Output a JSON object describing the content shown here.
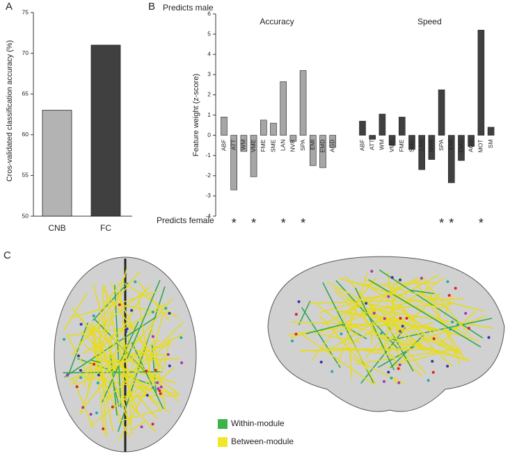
{
  "chart_data": [
    {
      "type": "bar",
      "panel_label": "A",
      "y_label": "Cros-validated classification accuracy (%)",
      "categories": [
        "CNB",
        "FC"
      ],
      "values": [
        63,
        71
      ],
      "colors": [
        "#b3b3b3",
        "#404040"
      ],
      "ylim": [
        50,
        75
      ],
      "yticks": [
        50,
        55,
        60,
        65,
        70,
        75
      ]
    },
    {
      "type": "bar",
      "panel_label": "B",
      "y_label": "Feature weight (z-score)",
      "top_note": "Predicts male",
      "bottom_note": "Predicts female",
      "ylim": [
        -4,
        6
      ],
      "yticks": [
        -4,
        -3,
        -2,
        -1,
        0,
        1,
        2,
        3,
        4,
        5,
        6
      ],
      "groups": [
        {
          "name": "Accuracy",
          "color": "#a6a6a6",
          "categories": [
            "ABF",
            "ATT",
            "WM",
            "VME",
            "FME",
            "SME",
            "LAN",
            "NVR",
            "SPA",
            "EMI",
            "EMD",
            "AGD"
          ],
          "values": [
            0.9,
            -2.7,
            -0.8,
            -2.05,
            0.75,
            0.6,
            2.65,
            -0.3,
            3.2,
            -1.5,
            -1.6,
            -0.6
          ],
          "star_labels": [
            null,
            "*",
            null,
            "*",
            null,
            null,
            "*",
            null,
            "*",
            null,
            null,
            null
          ]
        },
        {
          "name": "Speed",
          "color": "#404040",
          "categories": [
            "ABF",
            "ATT",
            "WM",
            "VME",
            "FME",
            "SME",
            "LAN",
            "NVR",
            "SPA",
            "EMI",
            "EMD",
            "AGD",
            "MOT",
            "SM"
          ],
          "values": [
            0.7,
            -0.2,
            1.05,
            -0.5,
            0.9,
            -0.7,
            -1.7,
            -1.2,
            2.25,
            -2.35,
            -1.25,
            -0.55,
            5.2,
            0.4
          ],
          "star_labels": [
            null,
            null,
            null,
            null,
            null,
            null,
            null,
            null,
            "*",
            "*",
            null,
            null,
            "*",
            null
          ]
        }
      ]
    }
  ],
  "figure_c": {
    "panel_label": "C",
    "legend": [
      {
        "label": "Within-module",
        "color": "#3cb44b"
      },
      {
        "label": "Between-module",
        "color": "#f0e62a"
      }
    ]
  }
}
